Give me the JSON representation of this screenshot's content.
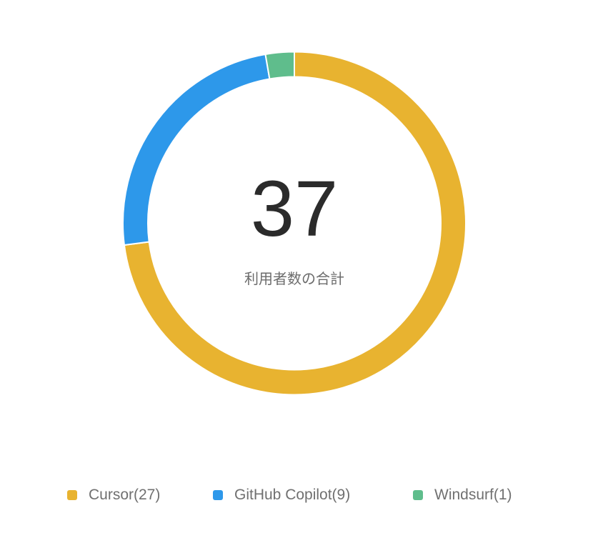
{
  "chart_data": {
    "type": "pie",
    "variant": "donut",
    "start_angle": "top",
    "direction": "clockwise",
    "center": {
      "value": "37",
      "label": "利用者数の合計"
    },
    "series": [
      {
        "name": "Cursor",
        "value": 27,
        "legend": "Cursor(27)",
        "color": "#E8B330"
      },
      {
        "name": "GitHub Copilot",
        "value": 9,
        "legend": "GitHub Copilot(9)",
        "color": "#2D98EA"
      },
      {
        "name": "Windsurf",
        "value": 1,
        "legend": "Windsurf(1)",
        "color": "#5FBD8C"
      }
    ],
    "legend_position": "bottom"
  }
}
